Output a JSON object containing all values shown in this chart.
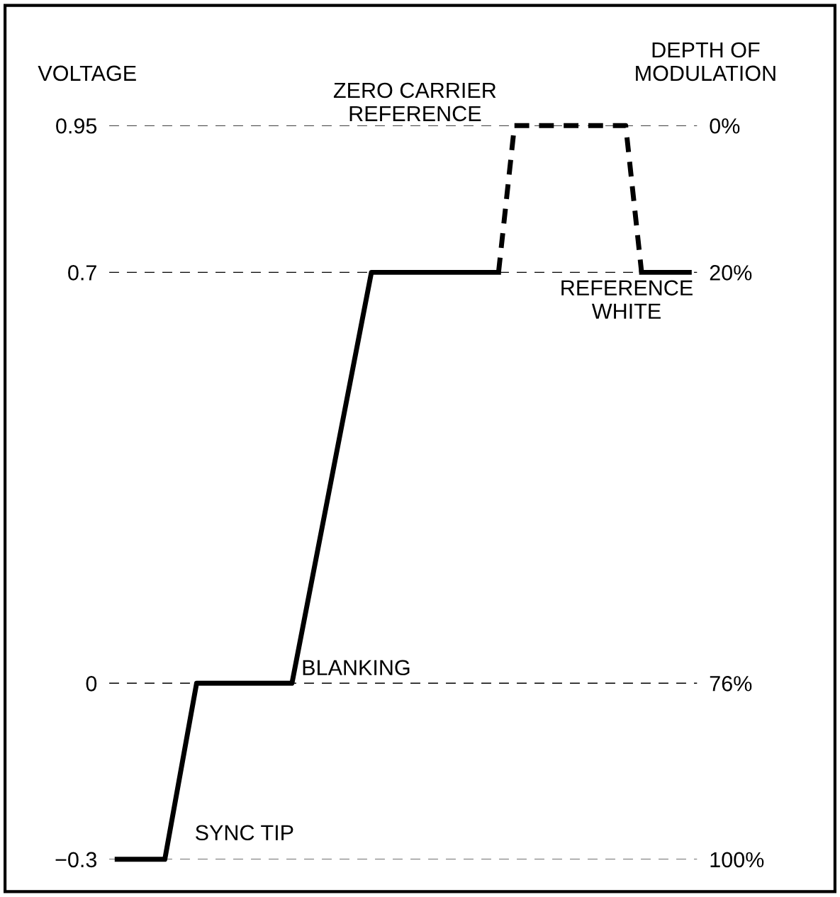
{
  "chart_data": {
    "type": "line",
    "ylabel": "VOLTAGE",
    "y2label": "DEPTH OF\nMODULATION",
    "categories": [
      null,
      null,
      null,
      null,
      null,
      null,
      null,
      null,
      null,
      null,
      null,
      null,
      null,
      null,
      null,
      null,
      null,
      null,
      null,
      null,
      null,
      null,
      null,
      null,
      null,
      null,
      null,
      null,
      null,
      null,
      null,
      null,
      null,
      null,
      null,
      null,
      null
    ],
    "series": [
      {
        "color": "#000000",
        "line_style": "solid",
        "values": [
          -0.3,
          -0.3,
          -0.3,
          -0.3,
          -0.15,
          0,
          0,
          0,
          0,
          0,
          0,
          0,
          0.14,
          0.28,
          0.42,
          0.56,
          0.7,
          0.7,
          0.7,
          0.7,
          0.7,
          0.7,
          0.7,
          0.7,
          0.7,
          null,
          null,
          null,
          null,
          null,
          null,
          null,
          null,
          null,
          null,
          null,
          null
        ]
      },
      {
        "color": "#000000",
        "line_style": "dashed",
        "values": [
          null,
          null,
          null,
          null,
          null,
          null,
          null,
          null,
          null,
          null,
          null,
          null,
          null,
          null,
          null,
          null,
          null,
          null,
          null,
          null,
          null,
          null,
          null,
          null,
          0.7,
          0.95,
          0.95,
          0.95,
          0.95,
          0.95,
          0.95,
          0.95,
          0.95,
          0.7,
          null,
          null,
          null
        ]
      },
      {
        "color": "#000000",
        "line_style": "solid",
        "values": [
          null,
          null,
          null,
          null,
          null,
          null,
          null,
          null,
          null,
          null,
          null,
          null,
          null,
          null,
          null,
          null,
          null,
          null,
          null,
          null,
          null,
          null,
          null,
          null,
          null,
          null,
          null,
          null,
          null,
          null,
          null,
          null,
          null,
          0.7,
          0.7,
          0.7,
          0.7
        ]
      }
    ],
    "ylim": [
      -0.3,
      0.95
    ],
    "yticks": [
      -0.3,
      0,
      0.7,
      0.95
    ],
    "y2lim": [
      100,
      0
    ],
    "y2ticks": [
      {
        "value": 0,
        "label": "0%"
      },
      {
        "value": 20,
        "label": "20%"
      },
      {
        "value": 76,
        "label": "76%"
      },
      {
        "value": 100,
        "label": "100%"
      }
    ],
    "ref_lines": [
      {
        "axis": "y",
        "value": 0.95,
        "color": "#000000",
        "line_style": "dashed"
      },
      {
        "axis": "y",
        "value": 0.7,
        "color": "#000000",
        "line_style": "dashed"
      },
      {
        "axis": "y",
        "value": 0,
        "color": "#000000",
        "line_style": "dashed"
      },
      {
        "axis": "y",
        "value": -0.3,
        "color": "#000000",
        "line_style": "dashed"
      }
    ],
    "annotations": [
      "ZERO CARRIER\nREFERENCE",
      "REFERENCE\nWHITE",
      "BLANKING",
      "SYNC TIP"
    ]
  }
}
